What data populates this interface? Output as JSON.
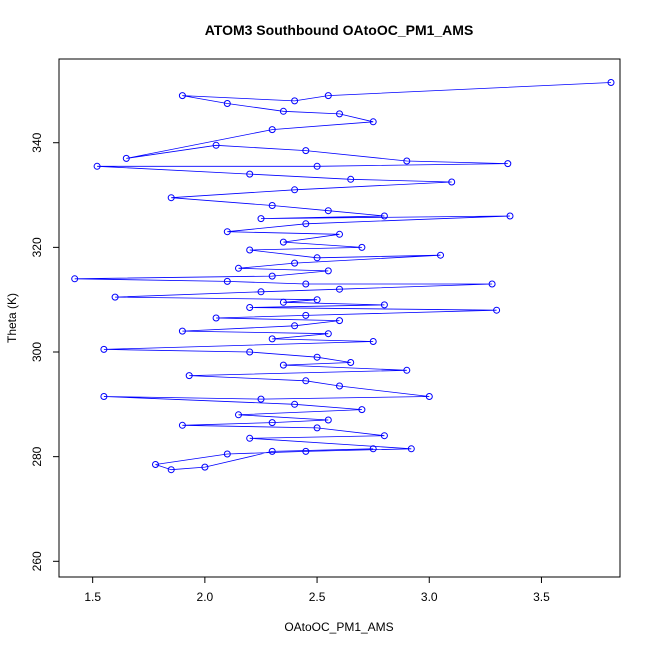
{
  "chart_data": {
    "type": "scatter",
    "title": "ATOM3 Southbound OAtoOC_PM1_AMS",
    "xlabel": "OAtoOC_PM1_AMS",
    "ylabel": "Theta (K)",
    "xlim": [
      1.35,
      3.85
    ],
    "ylim": [
      257,
      356
    ],
    "x_ticks": [
      1.5,
      2.0,
      2.5,
      3.0,
      3.5
    ],
    "x_tick_labels": [
      "1.5",
      "2.0",
      "2.5",
      "3.0",
      "3.5"
    ],
    "y_ticks": [
      260,
      280,
      300,
      320,
      340
    ],
    "y_tick_labels": [
      "260",
      "280",
      "300",
      "320",
      "340"
    ],
    "grid": false,
    "connected": true,
    "point_style": "open-circle",
    "color": "#0000ff",
    "series": [
      {
        "x": [
          3.81,
          2.55,
          2.4,
          1.9,
          2.1,
          2.35,
          2.6,
          2.75,
          2.3,
          1.65,
          2.05,
          2.45,
          2.9,
          3.35,
          2.5,
          1.52,
          2.2,
          2.65,
          3.1,
          2.4,
          1.85,
          2.3,
          2.55,
          2.8,
          2.25,
          3.36,
          2.45,
          2.1,
          2.6,
          2.35,
          2.7,
          2.2,
          2.5,
          3.05,
          2.4,
          2.15,
          2.55,
          2.3,
          1.42,
          2.1,
          2.45,
          3.28,
          2.6,
          2.25,
          1.6,
          2.5,
          2.35,
          2.8,
          2.2,
          3.3,
          2.45,
          2.05,
          2.6,
          2.4,
          1.9,
          2.55,
          2.3,
          2.75,
          1.55,
          2.2,
          2.5,
          2.65,
          2.35,
          2.9,
          1.93,
          2.45,
          2.6,
          3.0,
          2.25,
          1.55,
          2.4,
          2.7,
          2.15,
          2.55,
          2.3,
          1.9,
          2.5,
          2.8,
          2.2,
          2.92,
          2.45,
          2.1,
          1.78,
          1.85,
          2.0,
          2.3,
          2.75
        ],
        "y": [
          351.5,
          349.0,
          348.0,
          349.0,
          347.5,
          346.0,
          345.5,
          344.0,
          342.5,
          337.0,
          339.5,
          338.5,
          336.5,
          336.0,
          335.5,
          335.5,
          334.0,
          333.0,
          332.5,
          331.0,
          329.5,
          328.0,
          327.0,
          326.0,
          325.5,
          326.0,
          324.5,
          323.0,
          322.5,
          321.0,
          320.0,
          319.5,
          318.0,
          318.5,
          317.0,
          316.0,
          315.5,
          314.5,
          314.0,
          313.5,
          313.0,
          313.0,
          312.0,
          311.5,
          310.5,
          310.0,
          309.5,
          309.0,
          308.5,
          308.0,
          307.0,
          306.5,
          306.0,
          305.0,
          304.0,
          303.5,
          302.5,
          302.0,
          300.5,
          300.0,
          299.0,
          298.0,
          297.5,
          296.5,
          295.5,
          294.5,
          293.5,
          291.5,
          291.0,
          291.5,
          290.0,
          289.0,
          288.0,
          287.0,
          286.5,
          286.0,
          285.5,
          284.0,
          283.5,
          281.5,
          281.0,
          280.5,
          278.5,
          277.5,
          278.0,
          281.0,
          281.5
        ]
      }
    ]
  }
}
